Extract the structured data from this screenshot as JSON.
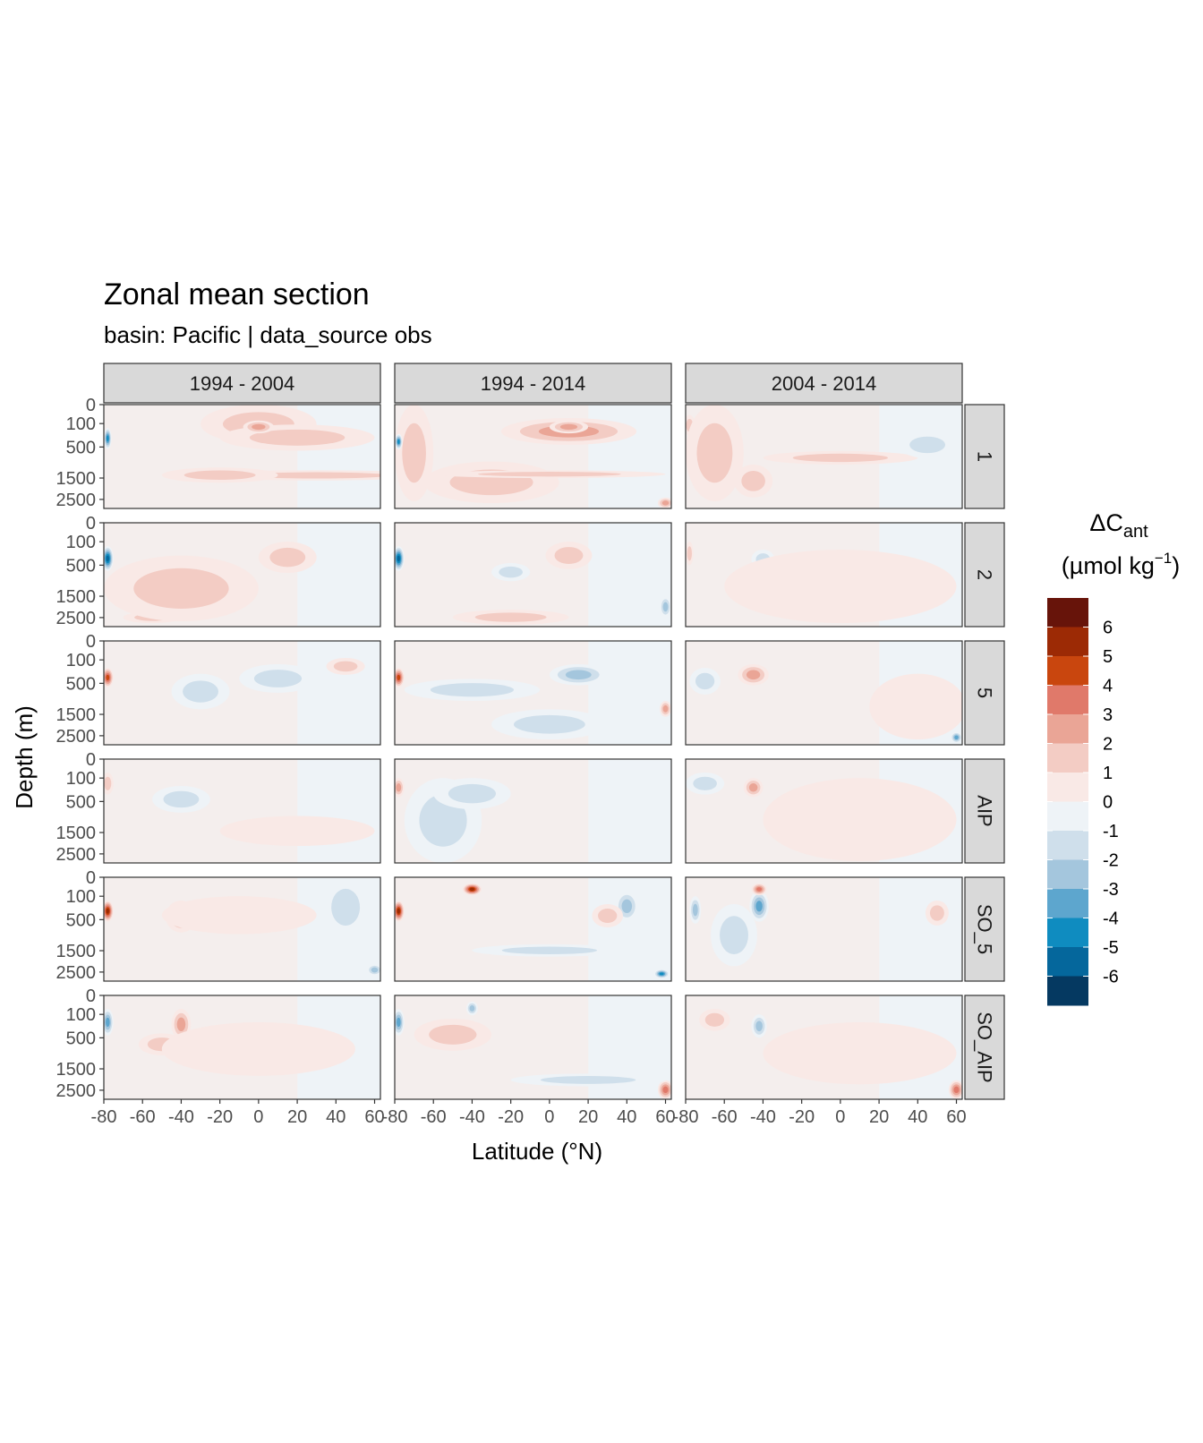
{
  "chart_data": {
    "type": "heatmap",
    "title": "Zonal mean section",
    "subtitle": "basin: Pacific | data_source obs",
    "xlabel": "Latitude (°N)",
    "ylabel": "Depth (m)",
    "legend_title_line1": "ΔC",
    "legend_title_sub": "ant",
    "legend_title_line2_a": "(µmol kg",
    "legend_title_line2_sup": "−1",
    "legend_title_line2_b": ")",
    "legend_position": "right",
    "columns": [
      "1994 - 2004",
      "1994 - 2014",
      "2004 - 2014"
    ],
    "rows": [
      "1",
      "2",
      "5",
      "AIP",
      "SO_5",
      "SO_AIP"
    ],
    "x_ticks": [
      "-80",
      "-60",
      "-40",
      "-20",
      "0",
      "20",
      "40",
      "60"
    ],
    "x_tick_values": [
      -80,
      -60,
      -40,
      -20,
      0,
      20,
      40,
      60
    ],
    "xlim": [
      -80,
      63
    ],
    "y_ticks": [
      "0",
      "100",
      "500",
      "1500",
      "2500"
    ],
    "y_tick_values": [
      0,
      100,
      500,
      1500,
      2500
    ],
    "ylim": [
      0,
      3000
    ],
    "y_scale": "sqrt, reversed",
    "legend_labels": [
      "6",
      "5",
      "4",
      "3",
      "2",
      "1",
      "0",
      "-1",
      "-2",
      "-3",
      "-4",
      "-5",
      "-6"
    ],
    "legend_colors": [
      "#67140a",
      "#9c2a05",
      "#c9460e",
      "#e0796a",
      "#eaa596",
      "#f3ccc4",
      "#f9e9e6",
      "#eef3f7",
      "#cfdfeb",
      "#a4c6dd",
      "#5da6ce",
      "#0f8cc0",
      "#05679c",
      "#053961"
    ],
    "panels": [
      {
        "row": "1",
        "col": "1994 - 2004",
        "features": [
          {
            "lat": 0,
            "depth": 200,
            "rx": 30,
            "ry": 220,
            "v": 1.6
          },
          {
            "lat": 20,
            "depth": 350,
            "rx": 40,
            "ry": 240,
            "v": 1.4
          },
          {
            "lat": 30,
            "depth": 1400,
            "rx": 60,
            "ry": 200,
            "v": 1.8
          },
          {
            "lat": 0,
            "depth": 150,
            "rx": 8,
            "ry": 80,
            "v": 2.4
          },
          {
            "lat": -78,
            "depth": 350,
            "rx": 2,
            "ry": 200,
            "v": -4.6
          },
          {
            "lat": -20,
            "depth": 1400,
            "rx": 30,
            "ry": 300,
            "v": 1.2
          }
        ]
      },
      {
        "row": "1",
        "col": "1994 - 2014",
        "features": [
          {
            "lat": 10,
            "depth": 250,
            "rx": 35,
            "ry": 200,
            "v": 2.2
          },
          {
            "lat": 10,
            "depth": 150,
            "rx": 10,
            "ry": 80,
            "v": 3.0
          },
          {
            "lat": -70,
            "depth": 1200,
            "rx": 10,
            "ry": 1400,
            "v": 1.3
          },
          {
            "lat": -30,
            "depth": 1800,
            "rx": 35,
            "ry": 900,
            "v": 1.3
          },
          {
            "lat": 0,
            "depth": 1350,
            "rx": 60,
            "ry": 150,
            "v": 1.6
          },
          {
            "lat": -78,
            "depth": 400,
            "rx": 2,
            "ry": 160,
            "v": -4.8
          },
          {
            "lat": 60,
            "depth": 2700,
            "rx": 4,
            "ry": 300,
            "v": 2.6
          }
        ]
      },
      {
        "row": "1",
        "col": "2004 - 2014",
        "features": [
          {
            "lat": -78,
            "depth": 150,
            "rx": 3,
            "ry": 120,
            "v": 1.9
          },
          {
            "lat": -65,
            "depth": 1300,
            "rx": 15,
            "ry": 1300,
            "v": 1.2
          },
          {
            "lat": -45,
            "depth": 1700,
            "rx": 10,
            "ry": 700,
            "v": 1.2
          },
          {
            "lat": 0,
            "depth": 800,
            "rx": 40,
            "ry": 200,
            "v": 1.1
          },
          {
            "lat": 45,
            "depth": 500,
            "rx": 15,
            "ry": 300,
            "v": -1.4
          }
        ]
      },
      {
        "row": "2",
        "col": "1994 - 2004",
        "features": [
          {
            "lat": 15,
            "depth": 400,
            "rx": 15,
            "ry": 300,
            "v": 1.8
          },
          {
            "lat": -78,
            "depth": 400,
            "rx": 3,
            "ry": 250,
            "v": -5.2
          },
          {
            "lat": -55,
            "depth": 2500,
            "rx": 15,
            "ry": 300,
            "v": 1.3
          },
          {
            "lat": -40,
            "depth": 1500,
            "rx": 40,
            "ry": 1200,
            "v": 1.1
          }
        ]
      },
      {
        "row": "2",
        "col": "1994 - 2014",
        "features": [
          {
            "lat": 10,
            "depth": 350,
            "rx": 12,
            "ry": 250,
            "v": 1.9
          },
          {
            "lat": -78,
            "depth": 400,
            "rx": 3,
            "ry": 250,
            "v": -5.2
          },
          {
            "lat": -20,
            "depth": 2500,
            "rx": 30,
            "ry": 400,
            "v": 1.4
          },
          {
            "lat": -20,
            "depth": 700,
            "rx": 10,
            "ry": 250,
            "v": -1.2
          },
          {
            "lat": 60,
            "depth": 2000,
            "rx": 3,
            "ry": 500,
            "v": -2.5
          }
        ]
      },
      {
        "row": "2",
        "col": "2004 - 2014",
        "features": [
          {
            "lat": -78,
            "depth": 300,
            "rx": 2,
            "ry": 200,
            "v": 1.6
          },
          {
            "lat": -40,
            "depth": 400,
            "rx": 6,
            "ry": 200,
            "v": -1.3
          },
          {
            "lat": 0,
            "depth": 1500,
            "rx": 60,
            "ry": 1300,
            "v": 0.9
          }
        ]
      },
      {
        "row": "5",
        "col": "1994 - 2004",
        "features": [
          {
            "lat": -78,
            "depth": 400,
            "rx": 3,
            "ry": 200,
            "v": 4.2
          },
          {
            "lat": 10,
            "depth": 450,
            "rx": 20,
            "ry": 300,
            "v": -1.6
          },
          {
            "lat": -30,
            "depth": 800,
            "rx": 15,
            "ry": 500,
            "v": -1.3
          },
          {
            "lat": 45,
            "depth": 200,
            "rx": 10,
            "ry": 120,
            "v": 1.5
          }
        ]
      },
      {
        "row": "5",
        "col": "1994 - 2014",
        "features": [
          {
            "lat": -78,
            "depth": 400,
            "rx": 3,
            "ry": 200,
            "v": 4.2
          },
          {
            "lat": 15,
            "depth": 350,
            "rx": 15,
            "ry": 200,
            "v": -2.2
          },
          {
            "lat": -40,
            "depth": 700,
            "rx": 35,
            "ry": 300,
            "v": -1.5
          },
          {
            "lat": 0,
            "depth": 2000,
            "rx": 30,
            "ry": 700,
            "v": -1.3
          },
          {
            "lat": 60,
            "depth": 1300,
            "rx": 3,
            "ry": 300,
            "v": 2.5
          }
        ]
      },
      {
        "row": "5",
        "col": "2004 - 2014",
        "features": [
          {
            "lat": -45,
            "depth": 350,
            "rx": 8,
            "ry": 200,
            "v": 2.8
          },
          {
            "lat": -70,
            "depth": 500,
            "rx": 8,
            "ry": 300,
            "v": -1.5
          },
          {
            "lat": 40,
            "depth": 1500,
            "rx": 25,
            "ry": 1200,
            "v": 1.0
          },
          {
            "lat": 60,
            "depth": 2600,
            "rx": 3,
            "ry": 300,
            "v": -3.2
          }
        ]
      },
      {
        "row": "AIP",
        "col": "1994 - 2004",
        "features": [
          {
            "lat": -40,
            "depth": 500,
            "rx": 15,
            "ry": 300,
            "v": -1.5
          },
          {
            "lat": -78,
            "depth": 200,
            "rx": 3,
            "ry": 150,
            "v": 1.5
          },
          {
            "lat": 20,
            "depth": 1500,
            "rx": 40,
            "ry": 600,
            "v": 0.8
          }
        ]
      },
      {
        "row": "AIP",
        "col": "1994 - 2014",
        "features": [
          {
            "lat": -78,
            "depth": 250,
            "rx": 3,
            "ry": 150,
            "v": 2.9
          },
          {
            "lat": -55,
            "depth": 1600,
            "rx": 20,
            "ry": 1500,
            "v": -1.2
          },
          {
            "lat": -40,
            "depth": 400,
            "rx": 20,
            "ry": 300,
            "v": -1.2
          }
        ]
      },
      {
        "row": "AIP",
        "col": "2004 - 2014",
        "features": [
          {
            "lat": -45,
            "depth": 250,
            "rx": 5,
            "ry": 150,
            "v": 2.5
          },
          {
            "lat": -70,
            "depth": 200,
            "rx": 10,
            "ry": 150,
            "v": -1.3
          },
          {
            "lat": 10,
            "depth": 1500,
            "rx": 50,
            "ry": 1400,
            "v": 0.8
          }
        ]
      },
      {
        "row": "SO_5",
        "col": "1994 - 2004",
        "features": [
          {
            "lat": -78,
            "depth": 350,
            "rx": 3,
            "ry": 200,
            "v": 6.0
          },
          {
            "lat": -40,
            "depth": 500,
            "rx": 8,
            "ry": 350,
            "v": 2.2
          },
          {
            "lat": 45,
            "depth": 500,
            "rx": 12,
            "ry": 500,
            "v": -1.4
          },
          {
            "lat": 60,
            "depth": 2400,
            "rx": 4,
            "ry": 300,
            "v": -2.5
          },
          {
            "lat": -10,
            "depth": 500,
            "rx": 40,
            "ry": 400,
            "v": 0.9
          }
        ]
      },
      {
        "row": "SO_5",
        "col": "1994 - 2014",
        "features": [
          {
            "lat": -78,
            "depth": 350,
            "rx": 3,
            "ry": 200,
            "v": 5.5
          },
          {
            "lat": -40,
            "depth": 50,
            "rx": 5,
            "ry": 40,
            "v": 5.8
          },
          {
            "lat": 40,
            "depth": 300,
            "rx": 6,
            "ry": 250,
            "v": -2.8
          },
          {
            "lat": 58,
            "depth": 2600,
            "rx": 4,
            "ry": 250,
            "v": -4.8
          },
          {
            "lat": 30,
            "depth": 450,
            "rx": 8,
            "ry": 250,
            "v": 1.8
          },
          {
            "lat": 0,
            "depth": 1500,
            "rx": 40,
            "ry": 250,
            "v": -1.2
          }
        ]
      },
      {
        "row": "SO_5",
        "col": "2004 - 2014",
        "features": [
          {
            "lat": -42,
            "depth": 300,
            "rx": 5,
            "ry": 250,
            "v": -4.0
          },
          {
            "lat": -42,
            "depth": 50,
            "rx": 4,
            "ry": 40,
            "v": 3.5
          },
          {
            "lat": -75,
            "depth": 350,
            "rx": 3,
            "ry": 250,
            "v": -3.0
          },
          {
            "lat": -55,
            "depth": 1200,
            "rx": 12,
            "ry": 1000,
            "v": -1.3
          },
          {
            "lat": 50,
            "depth": 400,
            "rx": 6,
            "ry": 250,
            "v": 2.0
          }
        ]
      },
      {
        "row": "SO_AIP",
        "col": "1994 - 2004",
        "features": [
          {
            "lat": -78,
            "depth": 250,
            "rx": 3,
            "ry": 200,
            "v": -3.5
          },
          {
            "lat": -40,
            "depth": 300,
            "rx": 5,
            "ry": 250,
            "v": 2.8
          },
          {
            "lat": -50,
            "depth": 700,
            "rx": 12,
            "ry": 300,
            "v": 1.4
          },
          {
            "lat": 0,
            "depth": 1000,
            "rx": 50,
            "ry": 800,
            "v": 0.8
          }
        ]
      },
      {
        "row": "SO_AIP",
        "col": "1994 - 2014",
        "features": [
          {
            "lat": -78,
            "depth": 250,
            "rx": 3,
            "ry": 200,
            "v": -3.5
          },
          {
            "lat": -50,
            "depth": 500,
            "rx": 20,
            "ry": 350,
            "v": 1.5
          },
          {
            "lat": 60,
            "depth": 2500,
            "rx": 4,
            "ry": 500,
            "v": 3.8
          },
          {
            "lat": -40,
            "depth": 60,
            "rx": 3,
            "ry": 50,
            "v": -3.0
          },
          {
            "lat": 20,
            "depth": 2000,
            "rx": 40,
            "ry": 300,
            "v": -1.1
          }
        ]
      },
      {
        "row": "SO_AIP",
        "col": "2004 - 2014",
        "features": [
          {
            "lat": -65,
            "depth": 200,
            "rx": 8,
            "ry": 150,
            "v": 2.0
          },
          {
            "lat": -42,
            "depth": 300,
            "rx": 4,
            "ry": 200,
            "v": -2.5
          },
          {
            "lat": 60,
            "depth": 2500,
            "rx": 4,
            "ry": 500,
            "v": 3.5
          },
          {
            "lat": 10,
            "depth": 1200,
            "rx": 50,
            "ry": 1000,
            "v": 0.8
          }
        ]
      }
    ]
  }
}
